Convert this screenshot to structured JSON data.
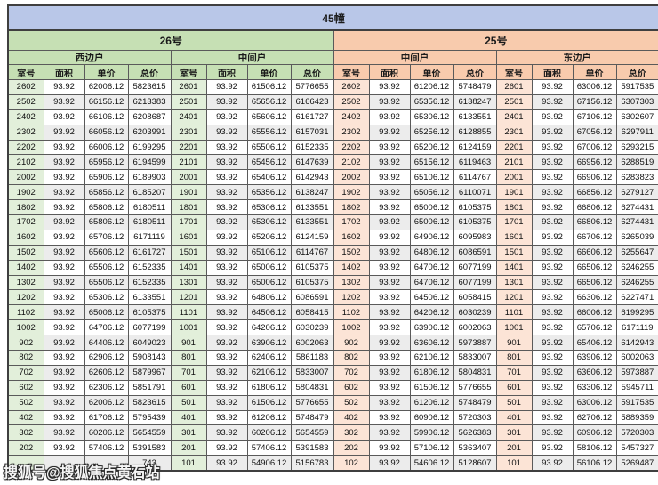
{
  "header": {
    "title": "45幢"
  },
  "buildings": [
    {
      "name": "26号",
      "tone": "green"
    },
    {
      "name": "25号",
      "tone": "orange"
    }
  ],
  "columns": [
    "室号",
    "面积",
    "单价",
    "总价"
  ],
  "watermark_text": "搜狐号@搜狐焦点黄石站",
  "groups": [
    {
      "building": "26号",
      "section": "西边户",
      "tone": "green",
      "rows": [
        [
          "2602",
          "93.92",
          "62006.12",
          "5823615"
        ],
        [
          "2502",
          "93.92",
          "66156.12",
          "6213383"
        ],
        [
          "2402",
          "93.92",
          "66106.12",
          "6208687"
        ],
        [
          "2302",
          "93.92",
          "66056.12",
          "6203991"
        ],
        [
          "2202",
          "93.92",
          "66006.12",
          "6199295"
        ],
        [
          "2102",
          "93.92",
          "65956.12",
          "6194599"
        ],
        [
          "2002",
          "93.92",
          "65906.12",
          "6189903"
        ],
        [
          "1902",
          "93.92",
          "65856.12",
          "6185207"
        ],
        [
          "1802",
          "93.92",
          "65806.12",
          "6180511"
        ],
        [
          "1702",
          "93.92",
          "65806.12",
          "6180511"
        ],
        [
          "1602",
          "93.92",
          "65706.12",
          "6171119"
        ],
        [
          "1502",
          "93.92",
          "65606.12",
          "6161727"
        ],
        [
          "1402",
          "93.92",
          "65506.12",
          "6152335"
        ],
        [
          "1302",
          "93.92",
          "65506.12",
          "6152335"
        ],
        [
          "1202",
          "93.92",
          "65306.12",
          "6133551"
        ],
        [
          "1102",
          "93.92",
          "65006.12",
          "6105375"
        ],
        [
          "1002",
          "93.92",
          "64706.12",
          "6077199"
        ],
        [
          "902",
          "93.92",
          "64406.12",
          "6049023"
        ],
        [
          "802",
          "93.92",
          "62906.12",
          "5908143"
        ],
        [
          "702",
          "93.92",
          "62606.12",
          "5879967"
        ],
        [
          "602",
          "93.92",
          "62306.12",
          "5851791"
        ],
        [
          "502",
          "93.92",
          "62006.12",
          "5823615"
        ],
        [
          "402",
          "93.92",
          "61706.12",
          "5795439"
        ],
        [
          "302",
          "93.92",
          "60206.12",
          "5654559"
        ],
        [
          "202",
          "93.92",
          "57406.12",
          "5391583"
        ],
        [
          "",
          "",
          "",
          "743"
        ]
      ]
    },
    {
      "building": "26号",
      "section": "中间户",
      "tone": "green",
      "rows": [
        [
          "2601",
          "93.92",
          "61506.12",
          "5776655"
        ],
        [
          "2501",
          "93.92",
          "65656.12",
          "6166423"
        ],
        [
          "2401",
          "93.92",
          "65606.12",
          "6161727"
        ],
        [
          "2301",
          "93.92",
          "65556.12",
          "6157031"
        ],
        [
          "2201",
          "93.92",
          "65506.12",
          "6152335"
        ],
        [
          "2101",
          "93.92",
          "65456.12",
          "6147639"
        ],
        [
          "2001",
          "93.92",
          "65406.12",
          "6142943"
        ],
        [
          "1901",
          "93.92",
          "65356.12",
          "6138247"
        ],
        [
          "1801",
          "93.92",
          "65306.12",
          "6133551"
        ],
        [
          "1701",
          "93.92",
          "65306.12",
          "6133551"
        ],
        [
          "1601",
          "93.92",
          "65206.12",
          "6124159"
        ],
        [
          "1501",
          "93.92",
          "65106.12",
          "6114767"
        ],
        [
          "1401",
          "93.92",
          "65006.12",
          "6105375"
        ],
        [
          "1301",
          "93.92",
          "65006.12",
          "6105375"
        ],
        [
          "1201",
          "93.92",
          "64806.12",
          "6086591"
        ],
        [
          "1101",
          "93.92",
          "64506.12",
          "6058415"
        ],
        [
          "1001",
          "93.92",
          "64206.12",
          "6030239"
        ],
        [
          "901",
          "93.92",
          "63906.12",
          "6002063"
        ],
        [
          "801",
          "93.92",
          "62406.12",
          "5861183"
        ],
        [
          "701",
          "93.92",
          "62106.12",
          "5833007"
        ],
        [
          "601",
          "93.92",
          "61806.12",
          "5804831"
        ],
        [
          "501",
          "93.92",
          "61506.12",
          "5776655"
        ],
        [
          "401",
          "93.92",
          "61206.12",
          "5748479"
        ],
        [
          "301",
          "93.92",
          "60206.12",
          "5654559"
        ],
        [
          "201",
          "93.92",
          "57406.12",
          "5391583"
        ],
        [
          "101",
          "93.92",
          "54906.12",
          "5156783"
        ]
      ]
    },
    {
      "building": "25号",
      "section": "中间户",
      "tone": "orange",
      "rows": [
        [
          "2602",
          "93.92",
          "61206.12",
          "5748479"
        ],
        [
          "2502",
          "93.92",
          "65356.12",
          "6138247"
        ],
        [
          "2402",
          "93.92",
          "65306.12",
          "6133551"
        ],
        [
          "2302",
          "93.92",
          "65256.12",
          "6128855"
        ],
        [
          "2202",
          "93.92",
          "65206.12",
          "6124159"
        ],
        [
          "2102",
          "93.92",
          "65156.12",
          "6119463"
        ],
        [
          "2002",
          "93.92",
          "65106.12",
          "6114767"
        ],
        [
          "1902",
          "93.92",
          "65056.12",
          "6110071"
        ],
        [
          "1802",
          "93.92",
          "65006.12",
          "6105375"
        ],
        [
          "1702",
          "93.92",
          "65006.12",
          "6105375"
        ],
        [
          "1602",
          "93.92",
          "64906.12",
          "6095983"
        ],
        [
          "1502",
          "93.92",
          "64806.12",
          "6086591"
        ],
        [
          "1402",
          "93.92",
          "64706.12",
          "6077199"
        ],
        [
          "1302",
          "93.92",
          "64706.12",
          "6077199"
        ],
        [
          "1202",
          "93.92",
          "64506.12",
          "6058415"
        ],
        [
          "1102",
          "93.92",
          "64206.12",
          "6030239"
        ],
        [
          "1002",
          "93.92",
          "63906.12",
          "6002063"
        ],
        [
          "902",
          "93.92",
          "63606.12",
          "5973887"
        ],
        [
          "802",
          "93.92",
          "62106.12",
          "5833007"
        ],
        [
          "702",
          "93.92",
          "61806.12",
          "5804831"
        ],
        [
          "602",
          "93.92",
          "61506.12",
          "5776655"
        ],
        [
          "502",
          "93.92",
          "61206.12",
          "5748479"
        ],
        [
          "402",
          "93.92",
          "60906.12",
          "5720303"
        ],
        [
          "302",
          "93.92",
          "59906.12",
          "5626383"
        ],
        [
          "202",
          "93.92",
          "57106.12",
          "5363407"
        ],
        [
          "102",
          "93.92",
          "54606.12",
          "5128607"
        ]
      ]
    },
    {
      "building": "25号",
      "section": "东边户",
      "tone": "orange",
      "rows": [
        [
          "2601",
          "93.92",
          "63006.12",
          "5917535"
        ],
        [
          "2501",
          "93.92",
          "67156.12",
          "6307303"
        ],
        [
          "2401",
          "93.92",
          "67106.12",
          "6302607"
        ],
        [
          "2301",
          "93.92",
          "67056.12",
          "6297911"
        ],
        [
          "2201",
          "93.92",
          "67006.12",
          "6293215"
        ],
        [
          "2101",
          "93.92",
          "66956.12",
          "6288519"
        ],
        [
          "2001",
          "93.92",
          "66906.12",
          "6283823"
        ],
        [
          "1901",
          "93.92",
          "66856.12",
          "6279127"
        ],
        [
          "1801",
          "93.92",
          "66806.12",
          "6274431"
        ],
        [
          "1701",
          "93.92",
          "66806.12",
          "6274431"
        ],
        [
          "1601",
          "93.92",
          "66706.12",
          "6265039"
        ],
        [
          "1501",
          "93.92",
          "66606.12",
          "6255647"
        ],
        [
          "1401",
          "93.92",
          "66506.12",
          "6246255"
        ],
        [
          "1301",
          "93.92",
          "66506.12",
          "6246255"
        ],
        [
          "1201",
          "93.92",
          "66306.12",
          "6227471"
        ],
        [
          "1101",
          "93.92",
          "66006.12",
          "6199295"
        ],
        [
          "1001",
          "93.92",
          "65706.12",
          "6171119"
        ],
        [
          "901",
          "93.92",
          "65406.12",
          "6142943"
        ],
        [
          "801",
          "93.92",
          "63906.12",
          "6002063"
        ],
        [
          "701",
          "93.92",
          "63606.12",
          "5973887"
        ],
        [
          "601",
          "93.92",
          "63306.12",
          "5945711"
        ],
        [
          "501",
          "93.92",
          "63006.12",
          "5917535"
        ],
        [
          "401",
          "93.92",
          "62706.12",
          "5889359"
        ],
        [
          "301",
          "93.92",
          "60906.12",
          "5720303"
        ],
        [
          "201",
          "93.92",
          "58106.12",
          "5457327"
        ],
        [
          "101",
          "93.92",
          "56106.12",
          "5269487"
        ]
      ]
    }
  ]
}
